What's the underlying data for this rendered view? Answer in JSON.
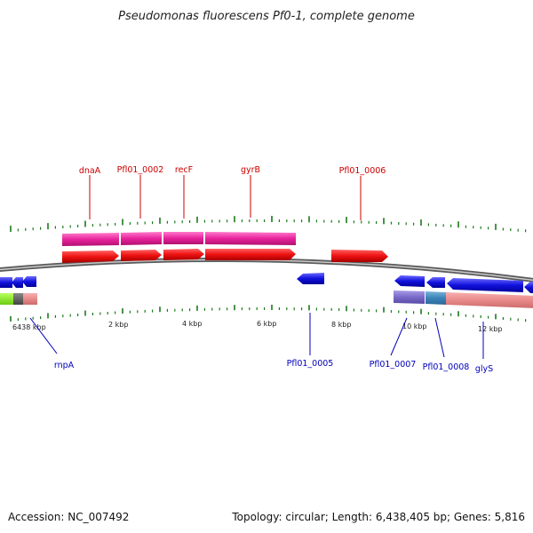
{
  "title": "Pseudomonas fluorescens Pf0-1, complete genome",
  "footer": {
    "accession": "Accession: NC_007492",
    "summary": "Topology: circular; Length: 6,438,405 bp; Genes: 5,816"
  },
  "colors": {
    "forward_gene": "#ee1111",
    "forward_cds": "#e8239c",
    "reverse_gene": "#1111dd",
    "backbone": "#8a8a8a",
    "tick": "#1a7a1a",
    "label_forward": "#cc0000",
    "label_reverse": "#0000bb"
  },
  "kbp_labels": [
    "6438 kbp",
    "2 kbp",
    "4 kbp",
    "6 kbp",
    "8 kbp",
    "10 kbp",
    "12 kbp"
  ],
  "forward_labels": [
    "dnaA",
    "Pfl01_0002",
    "recF",
    "gyrB",
    "Pfl01_0006"
  ],
  "reverse_labels": [
    "rnpA",
    "Pfl01_0005",
    "Pfl01_0007",
    "Pfl01_0008",
    "glyS"
  ]
}
